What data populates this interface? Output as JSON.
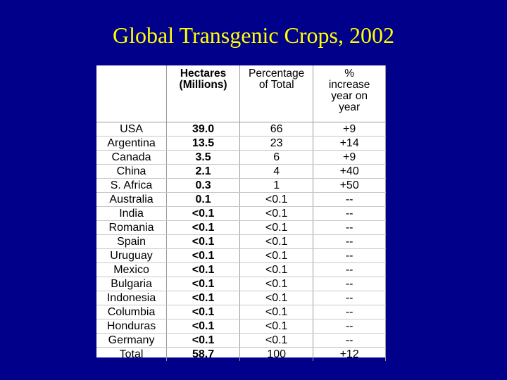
{
  "slide": {
    "title": "Global Transgenic Crops, 2002"
  },
  "table": {
    "headers": {
      "country": "",
      "hectares_line1": "Hectares",
      "hectares_line2": "(Millions)",
      "percentage_line1": "Percentage",
      "percentage_line2": "of Total",
      "increase_line1": "%",
      "increase_line2": "increase",
      "increase_line3": "year on",
      "increase_line4": "year"
    },
    "rows": [
      {
        "country": "USA",
        "hectares": "39.0",
        "percentage": "66",
        "increase": "+9"
      },
      {
        "country": "Argentina",
        "hectares": "13.5",
        "percentage": "23",
        "increase": "+14"
      },
      {
        "country": "Canada",
        "hectares": "3.5",
        "percentage": "6",
        "increase": "+9"
      },
      {
        "country": "China",
        "hectares": "2.1",
        "percentage": "4",
        "increase": "+40"
      },
      {
        "country": "S. Africa",
        "hectares": "0.3",
        "percentage": "1",
        "increase": "+50"
      },
      {
        "country": "Australia",
        "hectares": "0.1",
        "percentage": "<0.1",
        "increase": "--"
      },
      {
        "country": "India",
        "hectares": "<0.1",
        "percentage": "<0.1",
        "increase": "--"
      },
      {
        "country": "Romania",
        "hectares": "<0.1",
        "percentage": "<0.1",
        "increase": "--"
      },
      {
        "country": "Spain",
        "hectares": "<0.1",
        "percentage": "<0.1",
        "increase": "--"
      },
      {
        "country": "Uruguay",
        "hectares": "<0.1",
        "percentage": "<0.1",
        "increase": "--"
      },
      {
        "country": "Mexico",
        "hectares": "<0.1",
        "percentage": "<0.1",
        "increase": "--"
      },
      {
        "country": "Bulgaria",
        "hectares": "<0.1",
        "percentage": "<0.1",
        "increase": "--"
      },
      {
        "country": "Indonesia",
        "hectares": "<0.1",
        "percentage": "<0.1",
        "increase": "--"
      },
      {
        "country": "Columbia",
        "hectares": "<0.1",
        "percentage": "<0.1",
        "increase": "--"
      },
      {
        "country": "Honduras",
        "hectares": "<0.1",
        "percentage": "<0.1",
        "increase": "--"
      },
      {
        "country": "Germany",
        "hectares": "<0.1",
        "percentage": "<0.1",
        "increase": "--"
      },
      {
        "country": "Total",
        "hectares": "58.7",
        "percentage": "100",
        "increase": "+12"
      }
    ]
  },
  "colors": {
    "background": "#00008b",
    "title": "#ffff00",
    "panel": "#ffffff"
  }
}
